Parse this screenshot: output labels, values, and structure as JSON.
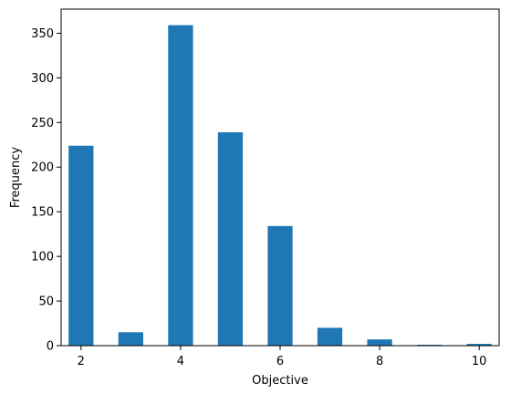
{
  "chart_data": {
    "type": "bar",
    "title": "",
    "xlabel": "Objective",
    "ylabel": "Frequency",
    "x": [
      2,
      3,
      4,
      5,
      6,
      7,
      8,
      9,
      10
    ],
    "values": [
      224,
      15,
      359,
      239,
      134,
      20,
      7,
      1,
      2
    ],
    "xlim": [
      1.6,
      10.4
    ],
    "ylim": [
      0,
      377
    ],
    "xticks": [
      2,
      4,
      6,
      8,
      10
    ],
    "yticks": [
      0,
      50,
      100,
      150,
      200,
      250,
      300,
      350
    ],
    "bar_width": 0.5,
    "bar_color": "#1f77b4",
    "grid": false,
    "legend": "none"
  }
}
